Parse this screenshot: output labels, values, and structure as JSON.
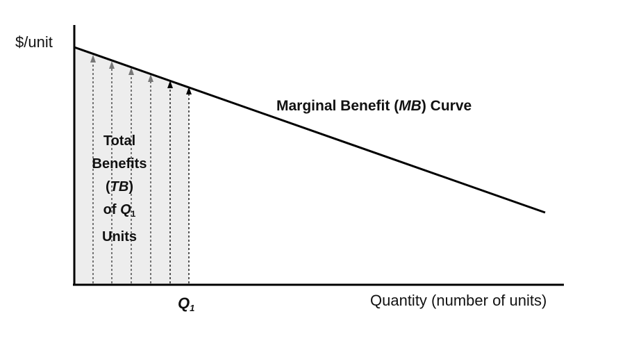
{
  "axes": {
    "y_label": "$/unit",
    "x_label": "Quantity (number of units)"
  },
  "curve": {
    "label_prefix": "Marginal Benefit (",
    "label_abbrev": "MB",
    "label_suffix": ") Curve"
  },
  "quantity_marker": {
    "symbol": "Q",
    "subscript": "1"
  },
  "total_benefits": {
    "line1": "Total",
    "line2": "Benefits",
    "line3_open": "(",
    "line3_abbrev": "TB",
    "line3_close": ")",
    "line4_prefix": "of ",
    "line4_symbol": "Q",
    "line4_subscript": "1",
    "line5": "Units"
  },
  "colors": {
    "axis": "#000000",
    "curve": "#000000",
    "shaded_area": "#ededed",
    "arrow_gray": "#777777",
    "arrow_dark": "#000000"
  }
}
